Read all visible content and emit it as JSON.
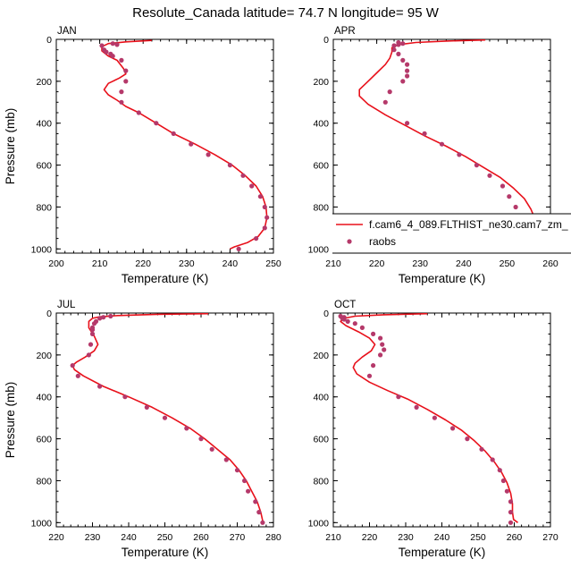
{
  "title": "Resolute_Canada  latitude= 74.7 N longitude= 95 W",
  "legend": {
    "model": "f.cam6_4_089.FLTHIST_ne30.cam7_zm_",
    "obs": "raobs"
  },
  "colors": {
    "model": "#e8101a",
    "obs": "#b5396a"
  },
  "chart_data": [
    {
      "type": "scatter",
      "title": "JAN",
      "xlabel": "Temperature (K)",
      "ylabel": "Pressure (mb)",
      "xlim": [
        200,
        250
      ],
      "ylim": [
        1020,
        0
      ],
      "y_inverted": true,
      "xticks": [
        200,
        210,
        220,
        230,
        240,
        250
      ],
      "yticks": [
        0,
        200,
        400,
        600,
        800,
        1000
      ],
      "legend": false,
      "series": [
        {
          "name": "f.cam6_4_089.FLTHIST_ne30.cam7_zm_",
          "kind": "line",
          "points": [
            [
              222,
              5
            ],
            [
              216,
              12
            ],
            [
              212,
              20
            ],
            [
              210.5,
              35
            ],
            [
              210.5,
              55
            ],
            [
              212,
              80
            ],
            [
              214,
              100
            ],
            [
              215.5,
              140
            ],
            [
              216,
              165
            ],
            [
              214.5,
              185
            ],
            [
              212,
              210
            ],
            [
              211,
              240
            ],
            [
              212,
              265
            ],
            [
              214,
              290
            ],
            [
              216,
              320
            ],
            [
              219,
              350
            ],
            [
              223,
              400
            ],
            [
              227,
              450
            ],
            [
              232,
              500
            ],
            [
              236.5,
              550
            ],
            [
              240.5,
              600
            ],
            [
              243.5,
              650
            ],
            [
              246,
              700
            ],
            [
              247.5,
              750
            ],
            [
              248.3,
              800
            ],
            [
              248.5,
              850
            ],
            [
              248,
              900
            ],
            [
              246.5,
              940
            ],
            [
              244,
              970
            ],
            [
              241,
              990
            ],
            [
              240,
              1000
            ]
          ]
        },
        {
          "name": "raobs",
          "kind": "points",
          "points": [
            [
              213,
              20
            ],
            [
              214,
              25
            ],
            [
              210.5,
              30
            ],
            [
              211,
              50
            ],
            [
              211.5,
              60
            ],
            [
              212.5,
              70
            ],
            [
              213,
              80
            ],
            [
              215,
              100
            ],
            [
              216,
              150
            ],
            [
              216,
              200
            ],
            [
              215,
              250
            ],
            [
              215,
              300
            ],
            [
              219,
              350
            ],
            [
              223,
              400
            ],
            [
              227,
              450
            ],
            [
              231,
              500
            ],
            [
              235,
              550
            ],
            [
              240,
              600
            ],
            [
              243,
              650
            ],
            [
              245,
              700
            ],
            [
              247,
              750
            ],
            [
              248,
              800
            ],
            [
              248.5,
              850
            ],
            [
              248,
              900
            ],
            [
              246,
              950
            ],
            [
              242,
              1000
            ]
          ]
        }
      ]
    },
    {
      "type": "scatter",
      "title": "APR",
      "xlabel": "Temperature (K)",
      "ylabel": "",
      "xlim": [
        210,
        260
      ],
      "ylim": [
        1020,
        0
      ],
      "y_inverted": true,
      "xticks": [
        210,
        220,
        230,
        240,
        250,
        260
      ],
      "yticks": [
        0,
        200,
        400,
        600,
        800,
        1000
      ],
      "legend": true,
      "series": [
        {
          "name": "f.cam6_4_089.FLTHIST_ne30.cam7_zm_",
          "kind": "line",
          "points": [
            [
              245,
              3
            ],
            [
              236,
              8
            ],
            [
              229,
              15
            ],
            [
              225,
              25
            ],
            [
              223.5,
              40
            ],
            [
              223.5,
              60
            ],
            [
              223,
              90
            ],
            [
              222,
              120
            ],
            [
              220,
              160
            ],
            [
              218,
              200
            ],
            [
              216,
              240
            ],
            [
              216,
              270
            ],
            [
              218,
              310
            ],
            [
              222,
              360
            ],
            [
              226.5,
              410
            ],
            [
              231,
              460
            ],
            [
              236,
              510
            ],
            [
              240.5,
              560
            ],
            [
              244.5,
              610
            ],
            [
              248.5,
              660
            ],
            [
              251.5,
              710
            ],
            [
              254,
              760
            ],
            [
              255.5,
              810
            ],
            [
              256.5,
              860
            ],
            [
              256,
              910
            ],
            [
              254,
              950
            ],
            [
              252,
              975
            ],
            [
              251,
              990
            ],
            [
              251,
              1000
            ]
          ]
        },
        {
          "name": "raobs",
          "kind": "points",
          "points": [
            [
              225,
              15
            ],
            [
              226,
              20
            ],
            [
              225,
              25
            ],
            [
              224,
              30
            ],
            [
              224,
              50
            ],
            [
              225,
              70
            ],
            [
              226,
              100
            ],
            [
              227,
              120
            ],
            [
              227,
              150
            ],
            [
              227,
              175
            ],
            [
              226,
              200
            ],
            [
              223,
              250
            ],
            [
              222,
              300
            ],
            [
              227,
              400
            ],
            [
              231,
              450
            ],
            [
              235,
              500
            ],
            [
              239,
              550
            ],
            [
              243,
              600
            ],
            [
              246,
              650
            ],
            [
              249,
              700
            ],
            [
              250.5,
              750
            ],
            [
              252,
              800
            ],
            [
              253,
              850
            ],
            [
              253.5,
              900
            ],
            [
              253,
              950
            ],
            [
              251,
              1000
            ]
          ]
        }
      ]
    },
    {
      "type": "scatter",
      "title": "JUL",
      "xlabel": "Temperature (K)",
      "ylabel": "Pressure (mb)",
      "xlim": [
        220,
        280
      ],
      "ylim": [
        1020,
        0
      ],
      "y_inverted": true,
      "xticks": [
        220,
        230,
        240,
        250,
        260,
        270,
        280
      ],
      "yticks": [
        0,
        200,
        400,
        600,
        800,
        1000
      ],
      "legend": false,
      "series": [
        {
          "name": "f.cam6_4_089.FLTHIST_ne30.cam7_zm_",
          "kind": "line",
          "points": [
            [
              262,
              3
            ],
            [
              248,
              6
            ],
            [
              237,
              12
            ],
            [
              232,
              18
            ],
            [
              230,
              25
            ],
            [
              229,
              40
            ],
            [
              229,
              70
            ],
            [
              230.5,
              110
            ],
            [
              231.5,
              150
            ],
            [
              230.5,
              180
            ],
            [
              228,
              210
            ],
            [
              225.5,
              235
            ],
            [
              224.5,
              250
            ],
            [
              225,
              270
            ],
            [
              227.5,
              300
            ],
            [
              233,
              350
            ],
            [
              240,
              400
            ],
            [
              246.5,
              450
            ],
            [
              252,
              500
            ],
            [
              257,
              550
            ],
            [
              261,
              600
            ],
            [
              264.5,
              650
            ],
            [
              268,
              700
            ],
            [
              270.5,
              750
            ],
            [
              272.5,
              800
            ],
            [
              274,
              850
            ],
            [
              275.5,
              900
            ],
            [
              276.5,
              950
            ],
            [
              277,
              990
            ],
            [
              277.2,
              1000
            ]
          ]
        },
        {
          "name": "raobs",
          "kind": "points",
          "points": [
            [
              235,
              15
            ],
            [
              233,
              20
            ],
            [
              232,
              25
            ],
            [
              231,
              40
            ],
            [
              230.5,
              50
            ],
            [
              230,
              70
            ],
            [
              230,
              80
            ],
            [
              230,
              100
            ],
            [
              229.5,
              150
            ],
            [
              229,
              200
            ],
            [
              224.5,
              250
            ],
            [
              226,
              300
            ],
            [
              232,
              350
            ],
            [
              239,
              400
            ],
            [
              245,
              450
            ],
            [
              250,
              500
            ],
            [
              256,
              550
            ],
            [
              260,
              600
            ],
            [
              263,
              650
            ],
            [
              267,
              700
            ],
            [
              270,
              750
            ],
            [
              272,
              800
            ],
            [
              273,
              850
            ],
            [
              275,
              900
            ],
            [
              276,
              950
            ],
            [
              277,
              1000
            ]
          ]
        }
      ]
    },
    {
      "type": "scatter",
      "title": "OCT",
      "xlabel": "Temperature (K)",
      "ylabel": "",
      "xlim": [
        210,
        270
      ],
      "ylim": [
        1020,
        0
      ],
      "y_inverted": true,
      "xticks": [
        210,
        220,
        230,
        240,
        250,
        260,
        270
      ],
      "yticks": [
        0,
        200,
        400,
        600,
        800,
        1000
      ],
      "legend": false,
      "series": [
        {
          "name": "f.cam6_4_089.FLTHIST_ne30.cam7_zm_",
          "kind": "line",
          "points": [
            [
              236,
              3
            ],
            [
              224,
              8
            ],
            [
              216,
              15
            ],
            [
              213,
              25
            ],
            [
              212,
              40
            ],
            [
              213.5,
              60
            ],
            [
              217,
              90
            ],
            [
              220,
              120
            ],
            [
              221.5,
              150
            ],
            [
              220.5,
              180
            ],
            [
              218,
              210
            ],
            [
              216,
              240
            ],
            [
              215.5,
              260
            ],
            [
              216.5,
              290
            ],
            [
              220,
              330
            ],
            [
              225,
              370
            ],
            [
              230.5,
              410
            ],
            [
              236,
              460
            ],
            [
              241,
              510
            ],
            [
              245.5,
              560
            ],
            [
              249,
              610
            ],
            [
              252,
              660
            ],
            [
              254.5,
              710
            ],
            [
              256.5,
              760
            ],
            [
              258,
              810
            ],
            [
              259,
              860
            ],
            [
              259.5,
              910
            ],
            [
              259.5,
              950
            ],
            [
              259.8,
              985
            ],
            [
              261,
              1000
            ]
          ]
        },
        {
          "name": "raobs",
          "kind": "points",
          "points": [
            [
              212,
              15
            ],
            [
              213,
              20
            ],
            [
              212.5,
              25
            ],
            [
              213,
              30
            ],
            [
              214,
              40
            ],
            [
              216,
              50
            ],
            [
              218,
              70
            ],
            [
              221,
              100
            ],
            [
              223,
              120
            ],
            [
              223.5,
              150
            ],
            [
              224,
              175
            ],
            [
              223,
              200
            ],
            [
              221,
              250
            ],
            [
              220,
              300
            ],
            [
              228,
              400
            ],
            [
              233,
              450
            ],
            [
              238,
              500
            ],
            [
              243,
              550
            ],
            [
              247,
              600
            ],
            [
              251,
              650
            ],
            [
              254,
              700
            ],
            [
              256,
              750
            ],
            [
              257,
              800
            ],
            [
              258,
              850
            ],
            [
              259,
              900
            ],
            [
              259,
              950
            ],
            [
              259,
              1000
            ]
          ]
        }
      ]
    }
  ]
}
